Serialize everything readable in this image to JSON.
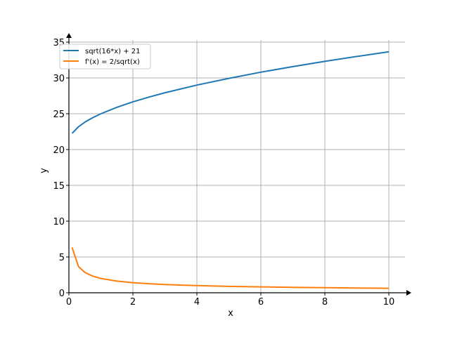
{
  "chart_data": {
    "type": "line",
    "xlabel": "x",
    "ylabel": "y",
    "xlim": [
      0,
      10.5
    ],
    "ylim": [
      0,
      35
    ],
    "xticks": [
      0,
      2,
      4,
      6,
      8,
      10
    ],
    "yticks": [
      0,
      5,
      10,
      15,
      20,
      25,
      30,
      35
    ],
    "grid": true,
    "legend_position": "top-left",
    "series": [
      {
        "name": "sqrt(16*x) + 21",
        "color": "#1f77b4",
        "x": [
          0.1,
          0.3,
          0.5,
          0.75,
          1,
          1.5,
          2,
          2.5,
          3,
          4,
          5,
          6,
          7,
          8,
          9,
          10
        ],
        "y": [
          22.26,
          23.19,
          23.83,
          24.46,
          25.0,
          25.9,
          26.66,
          27.32,
          27.93,
          29.0,
          29.94,
          30.8,
          31.58,
          32.31,
          33.0,
          33.65
        ]
      },
      {
        "name": "f'(x) = 2/sqrt(x)",
        "color": "#ff7f0e",
        "x": [
          0.1,
          0.3,
          0.5,
          0.75,
          1,
          1.5,
          2,
          2.5,
          3,
          4,
          5,
          6,
          7,
          8,
          9,
          10
        ],
        "y": [
          6.32,
          3.65,
          2.83,
          2.31,
          2.0,
          1.63,
          1.41,
          1.26,
          1.15,
          1.0,
          0.89,
          0.82,
          0.76,
          0.71,
          0.67,
          0.63
        ]
      }
    ]
  }
}
